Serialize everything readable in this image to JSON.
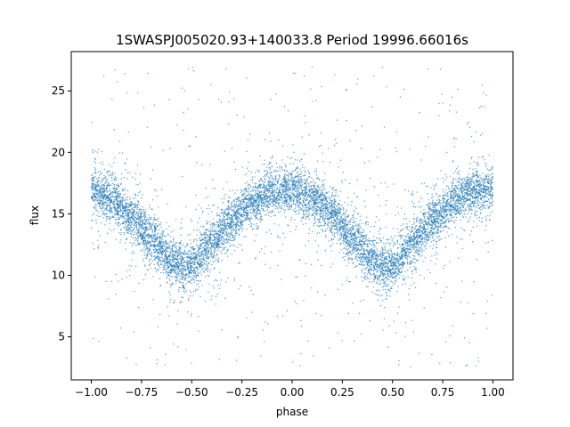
{
  "chart_data": {
    "type": "scatter",
    "title": "1SWASPJ005020.93+140033.8 Period 19996.66016s",
    "xlabel": "phase",
    "ylabel": "flux",
    "xlim": [
      -1.1,
      1.1
    ],
    "ylim": [
      1.5,
      28.2
    ],
    "xticks": [
      -1.0,
      -0.75,
      -0.5,
      -0.25,
      0.0,
      0.25,
      0.5,
      0.75,
      1.0
    ],
    "xtick_labels": [
      "−1.00",
      "−0.75",
      "−0.50",
      "−0.25",
      "0.00",
      "0.25",
      "0.50",
      "0.75",
      "1.00"
    ],
    "yticks": [
      5,
      10,
      15,
      20,
      25
    ],
    "ytick_labels": [
      "5",
      "10",
      "15",
      "20",
      "25"
    ],
    "grid": false,
    "marker_color": "#1f77b4",
    "phase_range": [
      -1.0,
      1.0
    ],
    "light_curve": {
      "description_values": "phase-folded light curve, mean flux vs phase",
      "phase": [
        -1.0,
        -0.9,
        -0.8,
        -0.7,
        -0.6,
        -0.53,
        -0.5,
        -0.4,
        -0.3,
        -0.2,
        -0.1,
        0.0,
        0.1,
        0.2,
        0.3,
        0.4,
        0.47,
        0.5,
        0.6,
        0.7,
        0.8,
        0.9,
        1.0
      ],
      "flux": [
        17.0,
        16.2,
        14.8,
        13.0,
        11.3,
        10.5,
        10.8,
        12.6,
        14.5,
        15.9,
        16.8,
        17.0,
        16.3,
        14.9,
        13.0,
        11.3,
        10.5,
        10.8,
        12.6,
        14.5,
        15.9,
        16.8,
        17.0
      ],
      "scatter_width": 0.9,
      "outlier_range": [
        2.5,
        27.0
      ]
    }
  }
}
